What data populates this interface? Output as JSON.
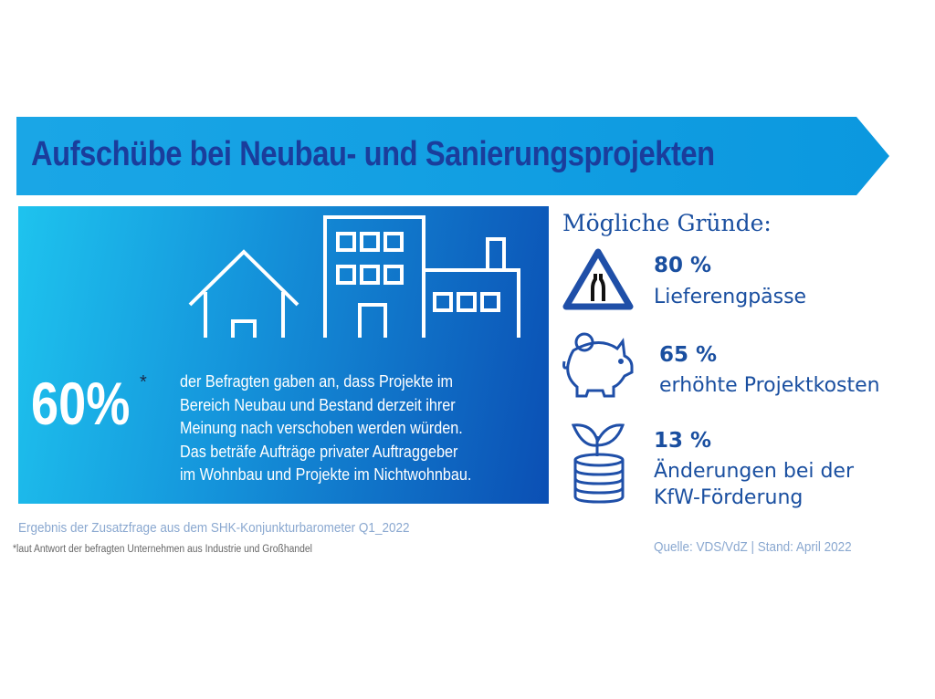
{
  "title": "Aufschübe bei Neubau- und Sanierungsprojekten",
  "headline": {
    "value": "60%",
    "asterisk": "*",
    "description_lines": [
      "der Befragten gaben an, dass Projekte im",
      "Bereich Neubau und Bestand derzeit ihrer",
      "Meinung nach verschoben werden würden.",
      "Das beträfe Aufträge privater Auftraggeber",
      "im Wohnbau und Projekte im Nichtwohnbau."
    ]
  },
  "reasons": {
    "title": "Mögliche Gründe:",
    "items": [
      {
        "percent": "80 %",
        "label": "Lieferengpässe",
        "icon": "road-narrows-sign-icon"
      },
      {
        "percent": "65 %",
        "label": "erhöhte Projektkosten",
        "icon": "piggy-bank-icon"
      },
      {
        "percent": "13 %",
        "label_lines": [
          "Änderungen bei der",
          "KfW-Förderung"
        ],
        "icon": "coins-plant-icon"
      }
    ]
  },
  "footer": {
    "survey_note": "Ergebnis der Zusatzfrage aus dem SHK-Konjunkturbarometer Q1_2022",
    "asterisk_note": "*laut Antwort der befragten Unternehmen aus Industrie und Großhandel",
    "source": "Quelle: VDS/VdZ | Stand: April 2022"
  },
  "colors": {
    "banner": "#0fa0e2",
    "title": "#1a3d9c",
    "text": "#1a4fa0"
  }
}
